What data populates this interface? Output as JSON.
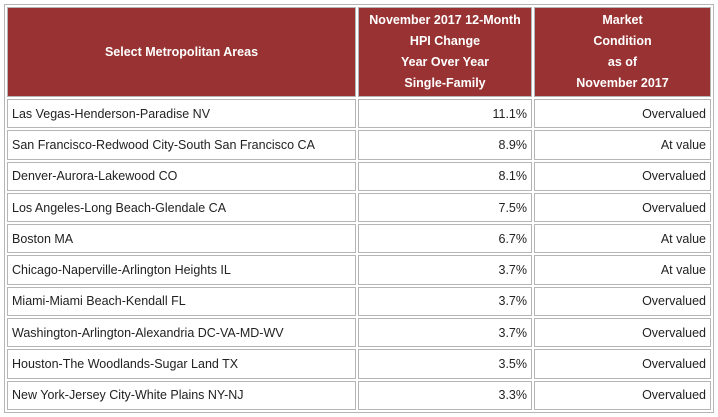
{
  "table": {
    "headers": {
      "area": "Select Metropolitan Areas",
      "change_lines": [
        "November 2017 12-Month",
        "HPI Change",
        "Year Over Year",
        "Single-Family"
      ],
      "condition_lines": [
        "Market",
        "Condition",
        "as of",
        "November 2017"
      ]
    },
    "rows": [
      {
        "area": "Las Vegas-Henderson-Paradise NV",
        "change": "11.1%",
        "condition": "Overvalued"
      },
      {
        "area": "San Francisco-Redwood City-South San Francisco CA",
        "change": "8.9%",
        "condition": "At value"
      },
      {
        "area": "Denver-Aurora-Lakewood CO",
        "change": "8.1%",
        "condition": "Overvalued"
      },
      {
        "area": "Los Angeles-Long Beach-Glendale CA",
        "change": "7.5%",
        "condition": "Overvalued"
      },
      {
        "area": "Boston MA",
        "change": "6.7%",
        "condition": "At value"
      },
      {
        "area": "Chicago-Naperville-Arlington Heights IL",
        "change": "3.7%",
        "condition": "At value"
      },
      {
        "area": "Miami-Miami Beach-Kendall FL",
        "change": "3.7%",
        "condition": "Overvalued"
      },
      {
        "area": "Washington-Arlington-Alexandria DC-VA-MD-WV",
        "change": "3.7%",
        "condition": "Overvalued"
      },
      {
        "area": "Houston-The Woodlands-Sugar Land TX",
        "change": "3.5%",
        "condition": "Overvalued"
      },
      {
        "area": "New York-Jersey City-White Plains NY-NJ",
        "change": "3.3%",
        "condition": "Overvalued"
      }
    ]
  }
}
